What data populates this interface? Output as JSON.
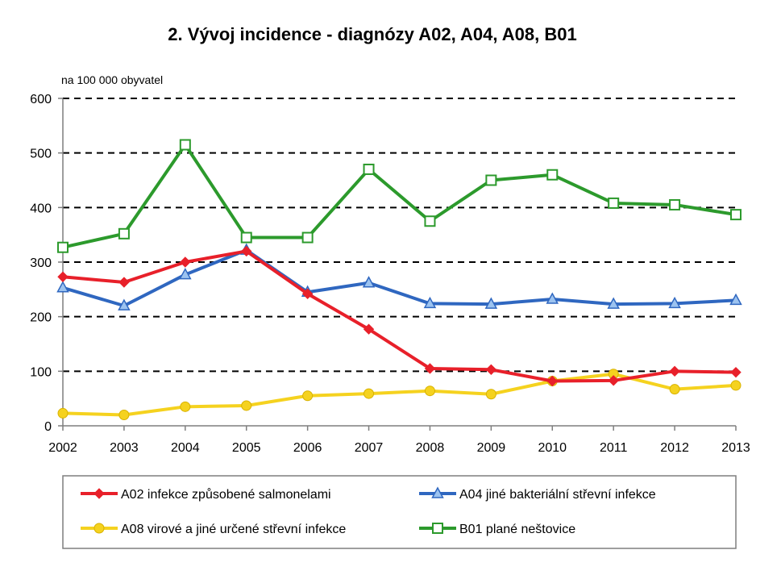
{
  "chart_data": {
    "type": "line",
    "title": "2.  Vývoj incidence - diagnózy A02, A04, A08, B01",
    "unit_label": "na 100 000 obyvatel",
    "x": [
      "2002",
      "2003",
      "2004",
      "2005",
      "2006",
      "2007",
      "2008",
      "2009",
      "2010",
      "2011",
      "2012",
      "2013"
    ],
    "yticks": [
      0,
      100,
      200,
      300,
      400,
      500,
      600
    ],
    "ylim": [
      0,
      600
    ],
    "grid": "horizontal dashed",
    "legend_position": "bottom",
    "series": [
      {
        "name": "A02 infekce způsobené salmonelami",
        "color": "#e8202a",
        "marker": "diamond",
        "values": [
          273,
          263,
          300,
          320,
          242,
          177,
          105,
          103,
          82,
          83,
          100,
          98
        ]
      },
      {
        "name": "A04 jiné bakteriální střevní infekce",
        "color": "#2f67c0",
        "marker": "triangle",
        "values": [
          253,
          220,
          277,
          322,
          245,
          262,
          224,
          223,
          232,
          223,
          224,
          230
        ]
      },
      {
        "name": "A08 virové a jiné určené střevní infekce",
        "color": "#f5d21f",
        "marker": "circle",
        "values": [
          23,
          20,
          35,
          37,
          55,
          59,
          64,
          58,
          82,
          95,
          67,
          74
        ]
      },
      {
        "name": "B01 plané neštovice",
        "color": "#2c9a2c",
        "marker": "square",
        "values": [
          327,
          352,
          515,
          345,
          345,
          470,
          375,
          450,
          460,
          408,
          405,
          387
        ]
      }
    ]
  }
}
